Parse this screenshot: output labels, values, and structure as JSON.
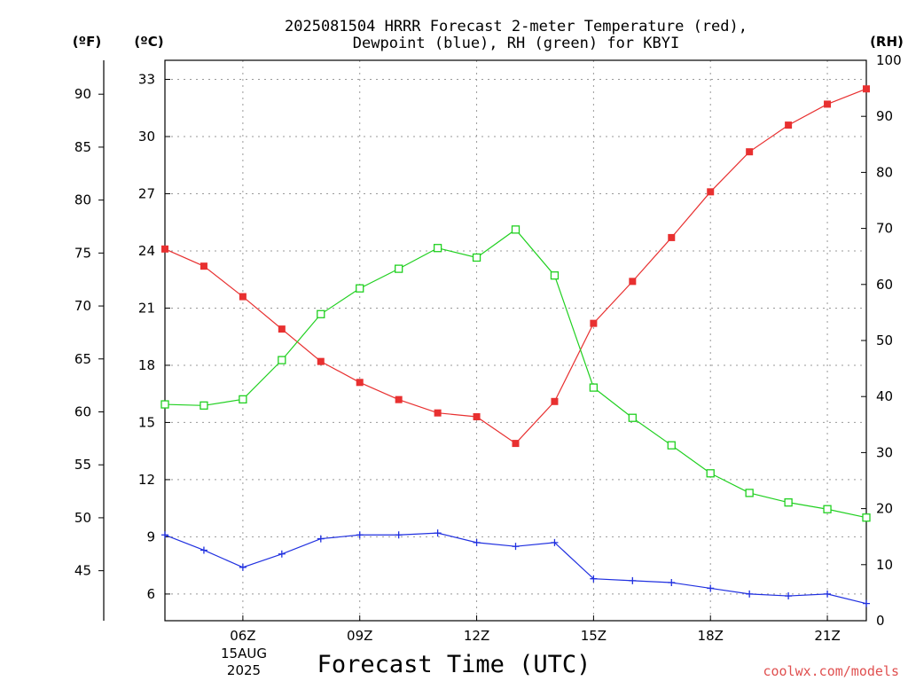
{
  "chart_data": {
    "type": "line",
    "title_line1": "2025081504 HRRR Forecast 2-meter Temperature (red),",
    "title_line2": "Dewpoint (blue), RH (green) for KBYI",
    "xlabel": "Forecast Time (UTC)",
    "credit": "coolwx.com/models",
    "left_outer_unit": "(ºF)",
    "left_inner_unit": "(ºC)",
    "right_unit": "(RH)",
    "date_label_line1": "15AUG",
    "date_label_line2": "2025",
    "x_hours": [
      4,
      5,
      6,
      7,
      8,
      9,
      10,
      11,
      12,
      13,
      14,
      15,
      16,
      17,
      18,
      19,
      20,
      21,
      22
    ],
    "x_ticks": [
      {
        "hour": 6,
        "label": "06Z"
      },
      {
        "hour": 9,
        "label": "09Z"
      },
      {
        "hour": 12,
        "label": "12Z"
      },
      {
        "hour": 15,
        "label": "15Z"
      },
      {
        "hour": 18,
        "label": "18Z"
      },
      {
        "hour": 21,
        "label": "21Z"
      }
    ],
    "x_range": [
      4,
      22
    ],
    "celsius_range": [
      4.6,
      34.0
    ],
    "celsius_ticks": [
      6,
      9,
      12,
      15,
      18,
      21,
      24,
      27,
      30,
      33
    ],
    "fahrenheit_ticks": [
      45,
      50,
      55,
      60,
      65,
      70,
      75,
      80,
      85,
      90
    ],
    "rh_range": [
      0,
      100
    ],
    "rh_ticks": [
      0,
      10,
      20,
      30,
      40,
      50,
      60,
      70,
      80,
      90,
      100
    ],
    "grid": true,
    "series": [
      {
        "name": "Temperature",
        "axis": "celsius",
        "color": "#e83030",
        "marker": "filled-square",
        "values": [
          24.1,
          23.2,
          21.6,
          19.9,
          18.2,
          17.1,
          16.2,
          15.5,
          15.3,
          13.9,
          16.1,
          20.2,
          22.4,
          24.7,
          27.1,
          29.2,
          30.6,
          31.7,
          32.5
        ]
      },
      {
        "name": "Dewpoint",
        "axis": "celsius",
        "color": "#2030e0",
        "marker": "plus",
        "values": [
          9.1,
          8.3,
          7.4,
          8.1,
          8.9,
          9.1,
          9.1,
          9.2,
          8.7,
          8.5,
          8.7,
          6.8,
          6.7,
          6.6,
          6.3,
          6.0,
          5.9,
          6.0,
          5.5
        ]
      },
      {
        "name": "RH",
        "axis": "rh",
        "color": "#20d020",
        "marker": "open-square",
        "values": [
          38.6,
          38.4,
          39.5,
          46.5,
          54.7,
          59.3,
          62.8,
          66.5,
          64.8,
          69.8,
          61.6,
          41.6,
          36.2,
          31.3,
          26.3,
          22.8,
          21.1,
          19.9,
          18.4
        ]
      }
    ]
  }
}
